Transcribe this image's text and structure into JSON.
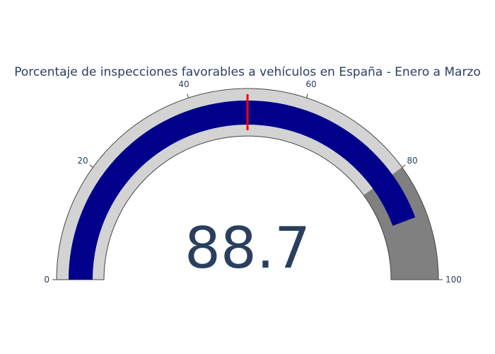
{
  "chart_data": {
    "type": "gauge",
    "title": "Porcentaje de inspecciones favorables a vehículos en España - Enero a Marzo",
    "value": 88.7,
    "value_label": "88.7",
    "range": [
      0,
      100
    ],
    "ticks": [
      0,
      20,
      40,
      60,
      80,
      100
    ],
    "tick_labels": [
      "0",
      "20",
      "40",
      "60",
      "80",
      "100"
    ],
    "threshold": 50,
    "steps": [
      {
        "range": [
          0,
          80
        ],
        "color": "#d3d3d3"
      },
      {
        "range": [
          80,
          100
        ],
        "color": "#808080"
      }
    ],
    "bar_color": "#00008b",
    "threshold_color": "#ff0000"
  }
}
